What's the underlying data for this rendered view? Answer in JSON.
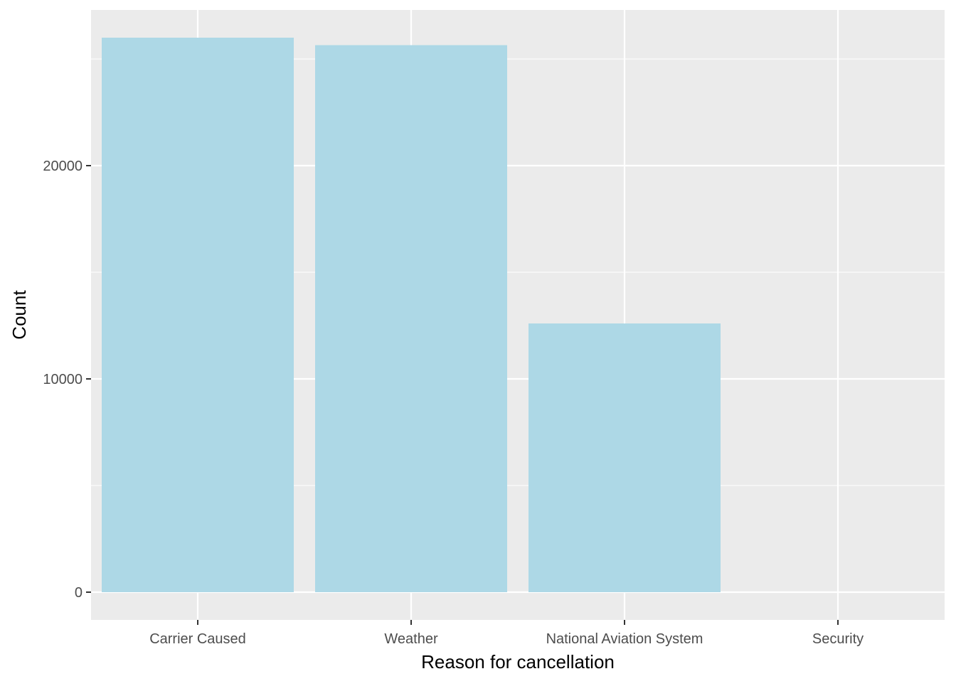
{
  "chart_data": {
    "type": "bar",
    "categories": [
      "Carrier Caused",
      "Weather",
      "National Aviation System",
      "Security"
    ],
    "values": [
      26000,
      25650,
      12600,
      0
    ],
    "xlabel": "Reason for cancellation",
    "ylabel": "Count",
    "ylim": [
      -1300,
      27300
    ],
    "yticks": [
      0,
      10000,
      20000
    ],
    "ytick_labels": [
      "0",
      "10000",
      "20000"
    ],
    "y_minor_gridlines": [
      5000,
      15000,
      25000
    ],
    "grid": true,
    "legend": "none",
    "colors": {
      "bar": "#add8e6",
      "panel": "#ebebeb",
      "grid": "#ffffff",
      "tick": "#333333",
      "tick_label": "#4d4d4d",
      "title": "#000000"
    }
  }
}
